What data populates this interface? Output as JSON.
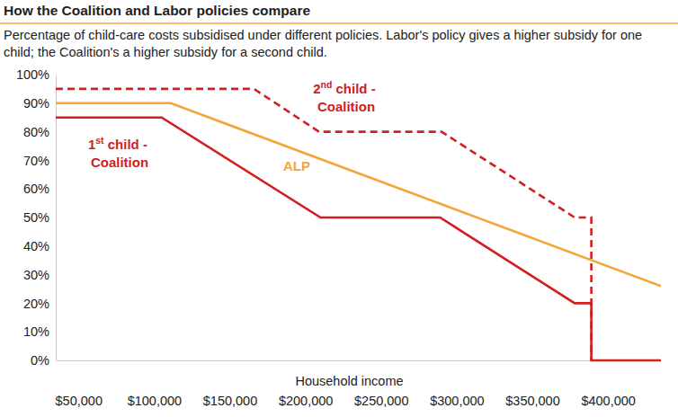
{
  "chart_data": {
    "type": "line",
    "title": "How the Coalition and Labor policies compare",
    "subtitle": "Percentage of child-care costs subsidised under different policies. Labor's policy gives a higher subsidy for one child; the Coalition's a higher subsidy for a second child.",
    "x_label": "Household income",
    "xlim": [
      35000,
      435000
    ],
    "xticks": [
      {
        "value": 50000,
        "label": "$50,000"
      },
      {
        "value": 100000,
        "label": "$100,000"
      },
      {
        "value": 150000,
        "label": "$150,000"
      },
      {
        "value": 200000,
        "label": "$200,000"
      },
      {
        "value": 250000,
        "label": "$250,000"
      },
      {
        "value": 300000,
        "label": "$300,000"
      },
      {
        "value": 350000,
        "label": "$350,000"
      },
      {
        "value": 400000,
        "label": "$400,000"
      }
    ],
    "ylim": [
      0,
      100
    ],
    "yticks": [
      {
        "value": 0,
        "label": "0%"
      },
      {
        "value": 10,
        "label": "10%"
      },
      {
        "value": 20,
        "label": "20%"
      },
      {
        "value": 30,
        "label": "30%"
      },
      {
        "value": 40,
        "label": "40%"
      },
      {
        "value": 50,
        "label": "50%"
      },
      {
        "value": 60,
        "label": "60%"
      },
      {
        "value": 70,
        "label": "70%"
      },
      {
        "value": 80,
        "label": "80%"
      },
      {
        "value": 90,
        "label": "90%"
      },
      {
        "value": 100,
        "label": "100%"
      }
    ],
    "grid": false,
    "series": [
      {
        "name": "1st child - Coalition",
        "color": "#d0201f",
        "line_style": "solid",
        "x": [
          35000,
          105000,
          210000,
          289000,
          378000,
          389000,
          389000,
          435000
        ],
        "values": [
          85,
          85,
          50,
          50,
          20,
          20,
          0,
          0
        ]
      },
      {
        "name": "2nd child - Coalition",
        "color": "#d0201f",
        "line_style": "dashed",
        "x": [
          35000,
          166000,
          209000,
          290000,
          378000,
          389000,
          389000
        ],
        "values": [
          95,
          95,
          80,
          80,
          50,
          50,
          0
        ]
      },
      {
        "name": "ALP",
        "color": "#f4a53a",
        "line_style": "solid",
        "x": [
          35000,
          111000,
          435000
        ],
        "values": [
          90,
          90,
          26
        ]
      }
    ]
  }
}
